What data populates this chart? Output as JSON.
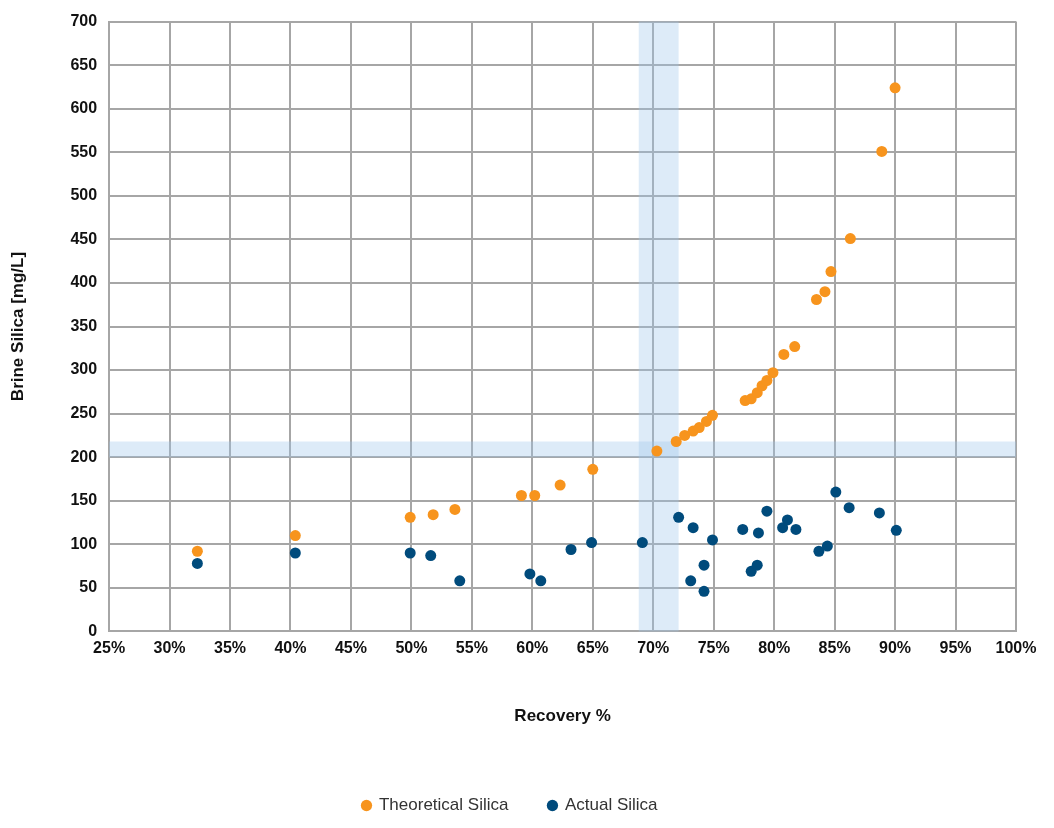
{
  "chart_data": {
    "type": "scatter",
    "xlabel": "Recovery %",
    "ylabel": "Brine Silica [mg/L]",
    "xlim": [
      25,
      100
    ],
    "xticks": [
      {
        "value": 25,
        "label": "25%"
      },
      {
        "value": 30,
        "label": "30%"
      },
      {
        "value": 35,
        "label": "35%"
      },
      {
        "value": 40,
        "label": "40%"
      },
      {
        "value": 45,
        "label": "45%"
      },
      {
        "value": 50,
        "label": "50%"
      },
      {
        "value": 55,
        "label": "55%"
      },
      {
        "value": 60,
        "label": "60%"
      },
      {
        "value": 65,
        "label": "65%"
      },
      {
        "value": 70,
        "label": "70%"
      },
      {
        "value": 75,
        "label": "75%"
      },
      {
        "value": 80,
        "label": "80%"
      },
      {
        "value": 85,
        "label": "85%"
      },
      {
        "value": 90,
        "label": "90%"
      },
      {
        "value": 95,
        "label": "95%"
      },
      {
        "value": 100,
        "label": "100%"
      }
    ],
    "ylim": [
      0,
      700
    ],
    "yticks": [
      0,
      50,
      100,
      150,
      200,
      250,
      300,
      350,
      400,
      450,
      500,
      550,
      600,
      650,
      700
    ],
    "grid": true,
    "legend": "bottom",
    "marker": "circle",
    "bands": [
      {
        "axis": "x",
        "from": 68.8,
        "to": 72.1,
        "color": "#9fc5ea"
      },
      {
        "axis": "y",
        "from": 200,
        "to": 218,
        "color": "#9fc5ea"
      }
    ],
    "series": [
      {
        "name": "Theoretical Silica",
        "color": "#f7941d",
        "x": [
          32.3,
          40.4,
          49.9,
          51.8,
          53.6,
          59.1,
          60.2,
          62.3,
          65.0,
          70.3,
          71.9,
          72.6,
          73.3,
          73.8,
          74.4,
          74.9,
          77.6,
          78.1,
          78.6,
          79.0,
          79.4,
          79.9,
          80.8,
          81.7,
          83.5,
          84.2,
          84.7,
          86.3,
          88.9,
          90.0
        ],
        "values": [
          92,
          110,
          131,
          134,
          140,
          156,
          156,
          168,
          186,
          207,
          218,
          225,
          230,
          234,
          241,
          248,
          265,
          267,
          274,
          282,
          288,
          297,
          318,
          327,
          381,
          390,
          413,
          451,
          551,
          624
        ]
      },
      {
        "name": "Actual Silica",
        "color": "#004b7c",
        "x": [
          32.3,
          40.4,
          49.9,
          51.6,
          54.0,
          59.8,
          60.7,
          63.2,
          64.9,
          69.1,
          72.1,
          73.3,
          73.1,
          74.2,
          74.2,
          74.9,
          77.4,
          78.1,
          78.6,
          78.7,
          79.4,
          80.7,
          81.1,
          81.8,
          83.7,
          84.4,
          85.1,
          86.2,
          88.7,
          90.1
        ],
        "values": [
          78,
          90,
          90,
          87,
          58,
          66,
          58,
          94,
          102,
          102,
          131,
          119,
          58,
          76,
          46,
          105,
          117,
          69,
          76,
          113,
          138,
          119,
          128,
          117,
          92,
          98,
          160,
          142,
          136,
          116
        ]
      }
    ]
  }
}
